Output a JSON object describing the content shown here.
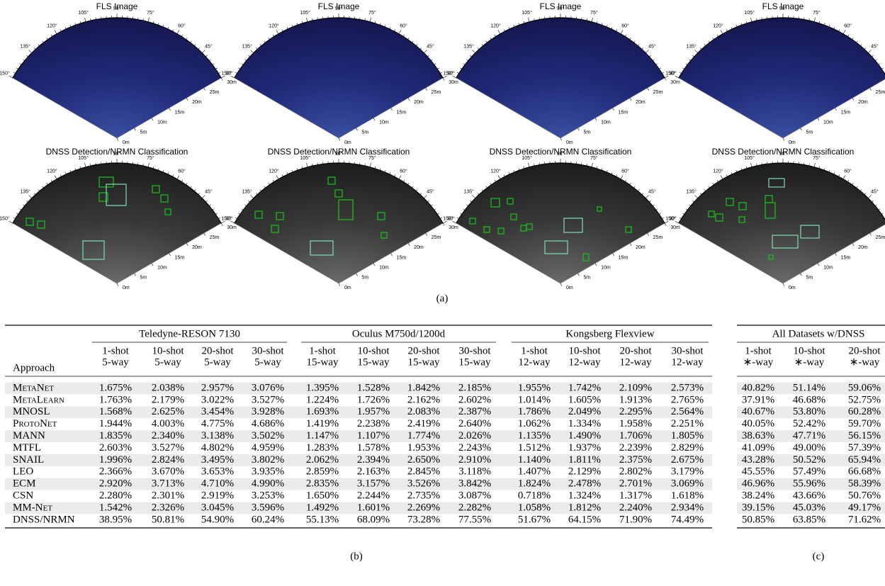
{
  "figure_a": {
    "top_title": "FLS Image",
    "bottom_title": "DNSS Detection/NRMN Classification",
    "angle_labels": [
      "150°",
      "135°",
      "120°",
      "105°",
      "90°",
      "75°",
      "60°",
      "45°",
      "30°"
    ],
    "range_labels": [
      "0m",
      "5m",
      "10m",
      "15m",
      "20m",
      "25m",
      "30m"
    ],
    "caption": "(a)"
  },
  "table_b": {
    "groups": [
      "Teledyne-RESON 7130",
      "Oculus M750d/1200d",
      "Kongsberg Flexview"
    ],
    "row_header": "Approach",
    "columns": [
      [
        "1-shot",
        "5-way"
      ],
      [
        "10-shot",
        "5-way"
      ],
      [
        "20-shot",
        "5-way"
      ],
      [
        "30-shot",
        "5-way"
      ],
      [
        "1-shot",
        "15-way"
      ],
      [
        "10-shot",
        "15-way"
      ],
      [
        "20-shot",
        "15-way"
      ],
      [
        "30-shot",
        "15-way"
      ],
      [
        "1-shot",
        "12-way"
      ],
      [
        "10-shot",
        "12-way"
      ],
      [
        "20-shot",
        "12-way"
      ],
      [
        "30-shot",
        "12-way"
      ]
    ],
    "rows": [
      {
        "name": "MetaNet",
        "values": [
          "1.675%",
          "2.038%",
          "2.957%",
          "3.076%",
          "1.395%",
          "1.528%",
          "1.842%",
          "2.185%",
          "1.955%",
          "1.742%",
          "2.109%",
          "2.573%"
        ]
      },
      {
        "name": "MetaLearn",
        "values": [
          "1.763%",
          "2.179%",
          "3.022%",
          "3.527%",
          "1.224%",
          "1.726%",
          "2.162%",
          "2.602%",
          "1.014%",
          "1.605%",
          "1.913%",
          "2.765%"
        ]
      },
      {
        "name": "MNOSL",
        "values": [
          "1.568%",
          "2.625%",
          "3.454%",
          "3.928%",
          "1.693%",
          "1.957%",
          "2.083%",
          "2.387%",
          "1.786%",
          "2.049%",
          "2.295%",
          "2.564%"
        ]
      },
      {
        "name": "ProtoNet",
        "values": [
          "1.944%",
          "4.003%",
          "4.775%",
          "4.686%",
          "1.419%",
          "2.238%",
          "2.419%",
          "2.640%",
          "1.062%",
          "1.334%",
          "1.958%",
          "2.251%"
        ]
      },
      {
        "name": "MANN",
        "values": [
          "1.835%",
          "2.340%",
          "3.138%",
          "3.502%",
          "1.147%",
          "1.107%",
          "1.774%",
          "2.026%",
          "1.135%",
          "1.490%",
          "1.706%",
          "1.805%"
        ]
      },
      {
        "name": "MTFL",
        "values": [
          "2.603%",
          "3.527%",
          "4.802%",
          "4.959%",
          "1.283%",
          "1.578%",
          "1.953%",
          "2.243%",
          "1.512%",
          "1.937%",
          "2.239%",
          "2.829%"
        ]
      },
      {
        "name": "SNAIL",
        "values": [
          "1.996%",
          "2.824%",
          "3.495%",
          "3.802%",
          "2.062%",
          "2.394%",
          "2.650%",
          "2.910%",
          "1.140%",
          "1.811%",
          "2.375%",
          "2.675%"
        ]
      },
      {
        "name": "LEO",
        "values": [
          "2.366%",
          "3.670%",
          "3.653%",
          "3.935%",
          "2.859%",
          "2.163%",
          "2.845%",
          "3.118%",
          "1.407%",
          "2.129%",
          "2.802%",
          "3.179%"
        ]
      },
      {
        "name": "ECM",
        "values": [
          "2.920%",
          "3.713%",
          "4.710%",
          "4.990%",
          "2.835%",
          "3.157%",
          "3.526%",
          "3.842%",
          "1.824%",
          "2.478%",
          "2.701%",
          "3.069%"
        ]
      },
      {
        "name": "CSN",
        "values": [
          "2.280%",
          "2.301%",
          "2.919%",
          "3.253%",
          "1.650%",
          "2.244%",
          "2.735%",
          "3.087%",
          "0.718%",
          "1.324%",
          "1.317%",
          "1.618%"
        ]
      },
      {
        "name": "MM-Net",
        "values": [
          "1.542%",
          "2.326%",
          "3.045%",
          "3.596%",
          "1.492%",
          "1.601%",
          "2.269%",
          "2.282%",
          "1.058%",
          "1.812%",
          "2.240%",
          "2.934%"
        ]
      },
      {
        "name": "DNSS/NRMN",
        "values": [
          "38.95%",
          "50.81%",
          "54.90%",
          "60.24%",
          "55.13%",
          "68.09%",
          "73.28%",
          "77.55%",
          "51.67%",
          "64.15%",
          "71.90%",
          "74.49%"
        ]
      }
    ],
    "caption": "(b)"
  },
  "table_c": {
    "group": "All Datasets w/DNSS",
    "columns": [
      [
        "1-shot",
        "∗-way"
      ],
      [
        "10-shot",
        "∗-way"
      ],
      [
        "20-shot",
        "∗-way"
      ]
    ],
    "rows": [
      [
        "40.82%",
        "51.14%",
        "59.06%"
      ],
      [
        "37.91%",
        "46.68%",
        "52.75%"
      ],
      [
        "40.67%",
        "53.80%",
        "60.28%"
      ],
      [
        "40.05%",
        "52.42%",
        "59.70%"
      ],
      [
        "38.63%",
        "47.71%",
        "56.15%"
      ],
      [
        "41.09%",
        "49.00%",
        "57.39%"
      ],
      [
        "43.28%",
        "50.52%",
        "65.94%"
      ],
      [
        "45.55%",
        "57.49%",
        "66.68%"
      ],
      [
        "46.96%",
        "55.96%",
        "58.39%"
      ],
      [
        "38.24%",
        "43.66%",
        "50.76%"
      ],
      [
        "39.15%",
        "45.03%",
        "49.17%"
      ],
      [
        "50.85%",
        "63.85%",
        "71.62%"
      ]
    ],
    "caption": "(c)"
  }
}
